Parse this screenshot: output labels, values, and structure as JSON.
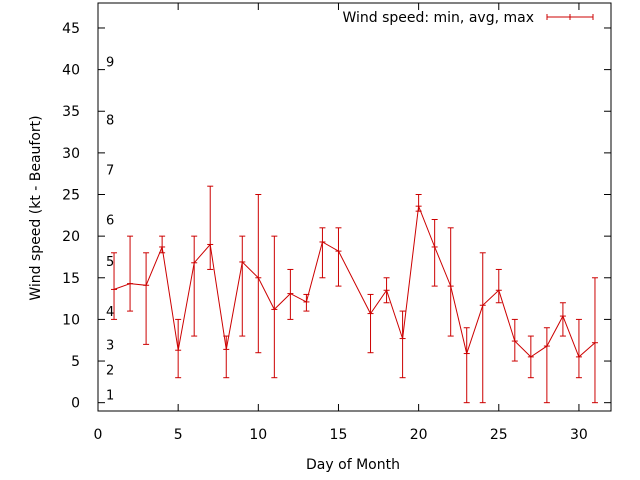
{
  "chart_data": {
    "type": "line",
    "title": "",
    "xlabel": "Day of Month",
    "ylabel": "Wind speed (kt - Beaufort)",
    "xlim": [
      0,
      32
    ],
    "ylim": [
      -1,
      48
    ],
    "xticks": [
      0,
      5,
      10,
      15,
      20,
      25,
      30
    ],
    "yticks": [
      0,
      5,
      10,
      15,
      20,
      25,
      30,
      35,
      40,
      45
    ],
    "grid": false,
    "legend_position": "top-right",
    "series": [
      {
        "name": "Wind speed: min, avg, max",
        "color": "#cc0000",
        "error_bars": true,
        "points": [
          {
            "x": 1,
            "min": 10,
            "avg": 13.6,
            "max": 18
          },
          {
            "x": 2,
            "min": 11,
            "avg": 14.3,
            "max": 20
          },
          {
            "x": 3,
            "min": 7,
            "avg": 14.1,
            "max": 18
          },
          {
            "x": 4,
            "min": 18,
            "avg": 18.7,
            "max": 20
          },
          {
            "x": 5,
            "min": 3,
            "avg": 6.3,
            "max": 10
          },
          {
            "x": 6,
            "min": 8,
            "avg": 16.8,
            "max": 20
          },
          {
            "x": 7,
            "min": 16,
            "avg": 19,
            "max": 26
          },
          {
            "x": 8,
            "min": 3,
            "avg": 6.4,
            "max": 8
          },
          {
            "x": 9,
            "min": 8,
            "avg": 16.9,
            "max": 20
          },
          {
            "x": 10,
            "min": 6,
            "avg": 15,
            "max": 25
          },
          {
            "x": 11,
            "min": 3,
            "avg": 11.2,
            "max": 20
          },
          {
            "x": 12,
            "min": 10,
            "avg": 13.1,
            "max": 16
          },
          {
            "x": 13,
            "min": 11,
            "avg": 12.1,
            "max": 13
          },
          {
            "x": 14,
            "min": 15,
            "avg": 19.3,
            "max": 21
          },
          {
            "x": 15,
            "min": 14,
            "avg": 18.2,
            "max": 21
          },
          {
            "x": 17,
            "min": 6,
            "avg": 10.7,
            "max": 13
          },
          {
            "x": 18,
            "min": 12,
            "avg": 13.5,
            "max": 15
          },
          {
            "x": 19,
            "min": 3,
            "avg": 7.7,
            "max": 11
          },
          {
            "x": 20,
            "min": 23,
            "avg": 23.6,
            "max": 25
          },
          {
            "x": 21,
            "min": 14,
            "avg": 18.7,
            "max": 22
          },
          {
            "x": 22,
            "min": 8,
            "avg": 14,
            "max": 21
          },
          {
            "x": 23,
            "min": 0,
            "avg": 5.9,
            "max": 9
          },
          {
            "x": 24,
            "min": 0,
            "avg": 11.7,
            "max": 18
          },
          {
            "x": 25,
            "min": 12,
            "avg": 13.5,
            "max": 16
          },
          {
            "x": 26,
            "min": 5,
            "avg": 7.4,
            "max": 10
          },
          {
            "x": 27,
            "min": 3,
            "avg": 5.5,
            "max": 8
          },
          {
            "x": 28,
            "min": 0,
            "avg": 6.8,
            "max": 9
          },
          {
            "x": 29,
            "min": 8,
            "avg": 10.4,
            "max": 12
          },
          {
            "x": 30,
            "min": 3,
            "avg": 5.5,
            "max": 10
          },
          {
            "x": 31,
            "min": 0,
            "avg": 7.2,
            "max": 15
          }
        ]
      }
    ],
    "beaufort_labels": [
      {
        "label": "1",
        "y": 1
      },
      {
        "label": "2",
        "y": 4
      },
      {
        "label": "3",
        "y": 7
      },
      {
        "label": "4",
        "y": 11
      },
      {
        "label": "5",
        "y": 17
      },
      {
        "label": "6",
        "y": 22
      },
      {
        "label": "7",
        "y": 28
      },
      {
        "label": "8",
        "y": 34
      },
      {
        "label": "9",
        "y": 41
      }
    ]
  }
}
